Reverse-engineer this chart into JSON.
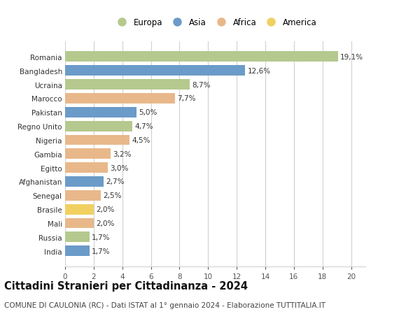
{
  "countries": [
    "India",
    "Russia",
    "Mali",
    "Brasile",
    "Senegal",
    "Afghanistan",
    "Egitto",
    "Gambia",
    "Nigeria",
    "Regno Unito",
    "Pakistan",
    "Marocco",
    "Ucraina",
    "Bangladesh",
    "Romania"
  ],
  "values": [
    1.7,
    1.7,
    2.0,
    2.0,
    2.5,
    2.7,
    3.0,
    3.2,
    4.5,
    4.7,
    5.0,
    7.7,
    8.7,
    12.6,
    19.1
  ],
  "labels": [
    "1,7%",
    "1,7%",
    "2,0%",
    "2,0%",
    "2,5%",
    "2,7%",
    "3,0%",
    "3,2%",
    "4,5%",
    "4,7%",
    "5,0%",
    "7,7%",
    "8,7%",
    "12,6%",
    "19,1%"
  ],
  "continents": [
    "Asia",
    "Europa",
    "Africa",
    "America",
    "Africa",
    "Asia",
    "Africa",
    "Africa",
    "Africa",
    "Europa",
    "Asia",
    "Africa",
    "Europa",
    "Asia",
    "Europa"
  ],
  "continent_colors": {
    "Europa": "#b5c98e",
    "Asia": "#6b9bc8",
    "Africa": "#e8b88a",
    "America": "#f0d060"
  },
  "legend_order": [
    "Europa",
    "Asia",
    "Africa",
    "America"
  ],
  "title": "Cittadini Stranieri per Cittadinanza - 2024",
  "subtitle": "COMUNE DI CAULONIA (RC) - Dati ISTAT al 1° gennaio 2024 - Elaborazione TUTTITALIA.IT",
  "xlim": [
    0,
    21
  ],
  "xticks": [
    0,
    2,
    4,
    6,
    8,
    10,
    12,
    14,
    16,
    18,
    20
  ],
  "background_color": "#ffffff",
  "grid_color": "#d0d0d0",
  "bar_height": 0.75,
  "title_fontsize": 10.5,
  "subtitle_fontsize": 7.5,
  "label_fontsize": 7.5,
  "tick_fontsize": 7.5,
  "legend_fontsize": 8.5
}
